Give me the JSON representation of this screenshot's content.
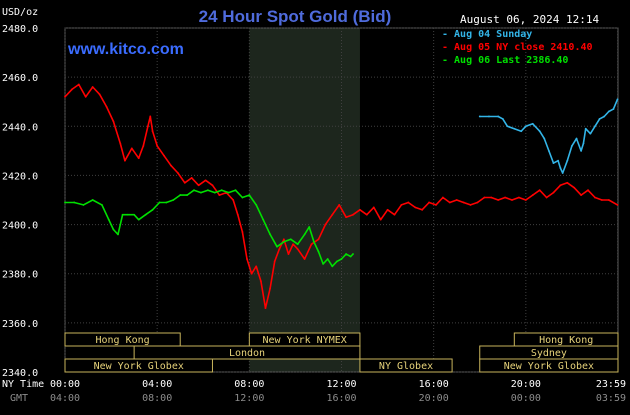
{
  "header": {
    "title": "24 Hour Spot Gold (Bid)",
    "timestamp": "August 06, 2024 12:14",
    "website": "www.kitco.com",
    "unit_label": "USD/oz"
  },
  "colors": {
    "background": "#000000",
    "plot_grid": "#404040",
    "axis_text": "#ffffff",
    "title": "#4f6bdc",
    "website": "#3b6cff",
    "series_sunday": "#33b5e8",
    "series_ny_close": "#ff0000",
    "series_last": "#00e000",
    "session_box_fill": "#000000",
    "session_box_border": "#c8b45c",
    "session_text": "#e6d27a",
    "shaded_region": "#1d261d",
    "secondary_time": "#8c8c8c"
  },
  "legend": {
    "placement": "top-right",
    "entries": [
      {
        "label": "Aug 04 Sunday",
        "color": "#33b5e8"
      },
      {
        "label": "Aug 05 NY close 2410.40",
        "color": "#ff0000"
      },
      {
        "label": "Aug 06 Last 2386.40",
        "color": "#00e000"
      }
    ]
  },
  "sessions": [
    {
      "label": "Hong Kong",
      "start": 0,
      "end": 5
    },
    {
      "label": "London",
      "start": 3,
      "end": 12.8
    },
    {
      "label": "New York Globex",
      "start": 0,
      "end": 6.4
    },
    {
      "label": "New York NYMEX",
      "start": 8,
      "end": 12.8
    },
    {
      "label": "NY Globex",
      "start": 12.8,
      "end": 16.8
    },
    {
      "label": "Hong Kong",
      "start": 19.5,
      "end": 24
    },
    {
      "label": "Sydney",
      "start": 18,
      "end": 24
    },
    {
      "label": "New York Globex",
      "start": 18,
      "end": 24
    }
  ],
  "chart_data": {
    "type": "line",
    "title": "24 Hour Spot Gold (Bid)",
    "ylabel": "USD/oz",
    "xlabel": "",
    "x_unit": "hours (NY time)",
    "xlim": [
      0,
      24
    ],
    "ylim": [
      2340,
      2480
    ],
    "grid": true,
    "shaded_range": [
      8,
      12.8
    ],
    "y_ticks": [
      "2340.0",
      "2360.0",
      "2380.0",
      "2400.0",
      "2420.0",
      "2440.0",
      "2460.0",
      "2480.0"
    ],
    "x_ticks": [
      {
        "value": 0,
        "label": "00:00",
        "gmt": "04:00"
      },
      {
        "value": 4,
        "label": "04:00",
        "gmt": "08:00"
      },
      {
        "value": 8,
        "label": "08:00",
        "gmt": "12:00"
      },
      {
        "value": 12,
        "label": "12:00",
        "gmt": "16:00"
      },
      {
        "value": 16,
        "label": "16:00",
        "gmt": "20:00"
      },
      {
        "value": 20,
        "label": "20:00",
        "gmt": "00:00"
      },
      {
        "value": 23.98,
        "label": "23:59",
        "gmt": "03:59"
      }
    ],
    "x_axis_labels": {
      "primary": "NY Time",
      "secondary": "GMT"
    },
    "series": [
      {
        "name": "Aug 04 Sunday",
        "color": "#33b5e8",
        "points": [
          [
            18,
            2444
          ],
          [
            18.4,
            2444
          ],
          [
            18.8,
            2444
          ],
          [
            19.0,
            2443
          ],
          [
            19.2,
            2440
          ],
          [
            19.5,
            2439
          ],
          [
            19.8,
            2438
          ],
          [
            20.0,
            2440
          ],
          [
            20.3,
            2441
          ],
          [
            20.6,
            2438
          ],
          [
            20.8,
            2435
          ],
          [
            21.0,
            2430
          ],
          [
            21.2,
            2425
          ],
          [
            21.4,
            2426
          ],
          [
            21.5,
            2423
          ],
          [
            21.6,
            2421
          ],
          [
            21.8,
            2426
          ],
          [
            22.0,
            2432
          ],
          [
            22.2,
            2435
          ],
          [
            22.4,
            2430
          ],
          [
            22.5,
            2433
          ],
          [
            22.6,
            2439
          ],
          [
            22.8,
            2437
          ],
          [
            23.0,
            2440
          ],
          [
            23.2,
            2443
          ],
          [
            23.4,
            2444
          ],
          [
            23.6,
            2446
          ],
          [
            23.8,
            2447
          ],
          [
            23.98,
            2451
          ]
        ]
      },
      {
        "name": "Aug 05 NY close 2410.40",
        "color": "#ff0000",
        "points": [
          [
            0,
            2452
          ],
          [
            0.3,
            2455
          ],
          [
            0.6,
            2457
          ],
          [
            0.9,
            2452
          ],
          [
            1.2,
            2456
          ],
          [
            1.5,
            2453
          ],
          [
            1.8,
            2448
          ],
          [
            2.1,
            2442
          ],
          [
            2.4,
            2433
          ],
          [
            2.6,
            2426
          ],
          [
            2.9,
            2431
          ],
          [
            3.2,
            2427
          ],
          [
            3.4,
            2432
          ],
          [
            3.6,
            2440
          ],
          [
            3.7,
            2444
          ],
          [
            3.8,
            2438
          ],
          [
            4.0,
            2432
          ],
          [
            4.3,
            2428
          ],
          [
            4.6,
            2424
          ],
          [
            4.9,
            2421
          ],
          [
            5.2,
            2417
          ],
          [
            5.5,
            2419
          ],
          [
            5.8,
            2416
          ],
          [
            6.1,
            2418
          ],
          [
            6.4,
            2416
          ],
          [
            6.7,
            2412
          ],
          [
            7.0,
            2413
          ],
          [
            7.3,
            2410
          ],
          [
            7.5,
            2404
          ],
          [
            7.7,
            2397
          ],
          [
            7.9,
            2386
          ],
          [
            8.1,
            2380
          ],
          [
            8.3,
            2383
          ],
          [
            8.5,
            2377
          ],
          [
            8.7,
            2366
          ],
          [
            8.9,
            2374
          ],
          [
            9.1,
            2385
          ],
          [
            9.3,
            2390
          ],
          [
            9.5,
            2394
          ],
          [
            9.7,
            2388
          ],
          [
            9.9,
            2392
          ],
          [
            10.1,
            2390
          ],
          [
            10.4,
            2386
          ],
          [
            10.7,
            2392
          ],
          [
            11.0,
            2394
          ],
          [
            11.3,
            2400
          ],
          [
            11.6,
            2404
          ],
          [
            11.9,
            2408
          ],
          [
            12.2,
            2403
          ],
          [
            12.5,
            2404
          ],
          [
            12.8,
            2406
          ],
          [
            13.1,
            2404
          ],
          [
            13.4,
            2407
          ],
          [
            13.7,
            2402
          ],
          [
            14.0,
            2406
          ],
          [
            14.3,
            2404
          ],
          [
            14.6,
            2408
          ],
          [
            14.9,
            2409
          ],
          [
            15.2,
            2407
          ],
          [
            15.5,
            2406
          ],
          [
            15.8,
            2409
          ],
          [
            16.1,
            2408
          ],
          [
            16.4,
            2411
          ],
          [
            16.7,
            2409
          ],
          [
            17.0,
            2410
          ],
          [
            17.3,
            2409
          ],
          [
            17.6,
            2408
          ],
          [
            17.9,
            2409
          ],
          [
            18.2,
            2411
          ],
          [
            18.5,
            2411
          ],
          [
            18.8,
            2410
          ],
          [
            19.1,
            2411
          ],
          [
            19.4,
            2410
          ],
          [
            19.7,
            2411
          ],
          [
            20.0,
            2410
          ],
          [
            20.3,
            2412
          ],
          [
            20.6,
            2414
          ],
          [
            20.9,
            2411
          ],
          [
            21.2,
            2413
          ],
          [
            21.5,
            2416
          ],
          [
            21.8,
            2417
          ],
          [
            22.1,
            2415
          ],
          [
            22.4,
            2412
          ],
          [
            22.7,
            2414
          ],
          [
            23.0,
            2411
          ],
          [
            23.3,
            2410
          ],
          [
            23.6,
            2410
          ],
          [
            23.98,
            2408
          ]
        ]
      },
      {
        "name": "Aug 06 Last 2386.40",
        "color": "#00e000",
        "points": [
          [
            0,
            2409
          ],
          [
            0.4,
            2409
          ],
          [
            0.8,
            2408
          ],
          [
            1.2,
            2410
          ],
          [
            1.6,
            2408
          ],
          [
            1.9,
            2402
          ],
          [
            2.1,
            2398
          ],
          [
            2.3,
            2396
          ],
          [
            2.5,
            2404
          ],
          [
            2.7,
            2404
          ],
          [
            3.0,
            2404
          ],
          [
            3.2,
            2402
          ],
          [
            3.5,
            2404
          ],
          [
            3.8,
            2406
          ],
          [
            4.1,
            2409
          ],
          [
            4.4,
            2409
          ],
          [
            4.7,
            2410
          ],
          [
            5.0,
            2412
          ],
          [
            5.3,
            2412
          ],
          [
            5.6,
            2414
          ],
          [
            5.9,
            2413
          ],
          [
            6.2,
            2414
          ],
          [
            6.5,
            2413
          ],
          [
            6.8,
            2414
          ],
          [
            7.1,
            2413
          ],
          [
            7.4,
            2414
          ],
          [
            7.7,
            2411
          ],
          [
            8.0,
            2412
          ],
          [
            8.3,
            2408
          ],
          [
            8.6,
            2402
          ],
          [
            8.9,
            2396
          ],
          [
            9.2,
            2391
          ],
          [
            9.5,
            2393
          ],
          [
            9.8,
            2394
          ],
          [
            10.1,
            2392
          ],
          [
            10.4,
            2396
          ],
          [
            10.6,
            2399
          ],
          [
            10.8,
            2393
          ],
          [
            11.0,
            2389
          ],
          [
            11.2,
            2384
          ],
          [
            11.4,
            2386
          ],
          [
            11.6,
            2383
          ],
          [
            11.8,
            2385
          ],
          [
            12.0,
            2386
          ],
          [
            12.2,
            2388
          ],
          [
            12.4,
            2387
          ],
          [
            12.5,
            2388
          ]
        ]
      }
    ]
  }
}
